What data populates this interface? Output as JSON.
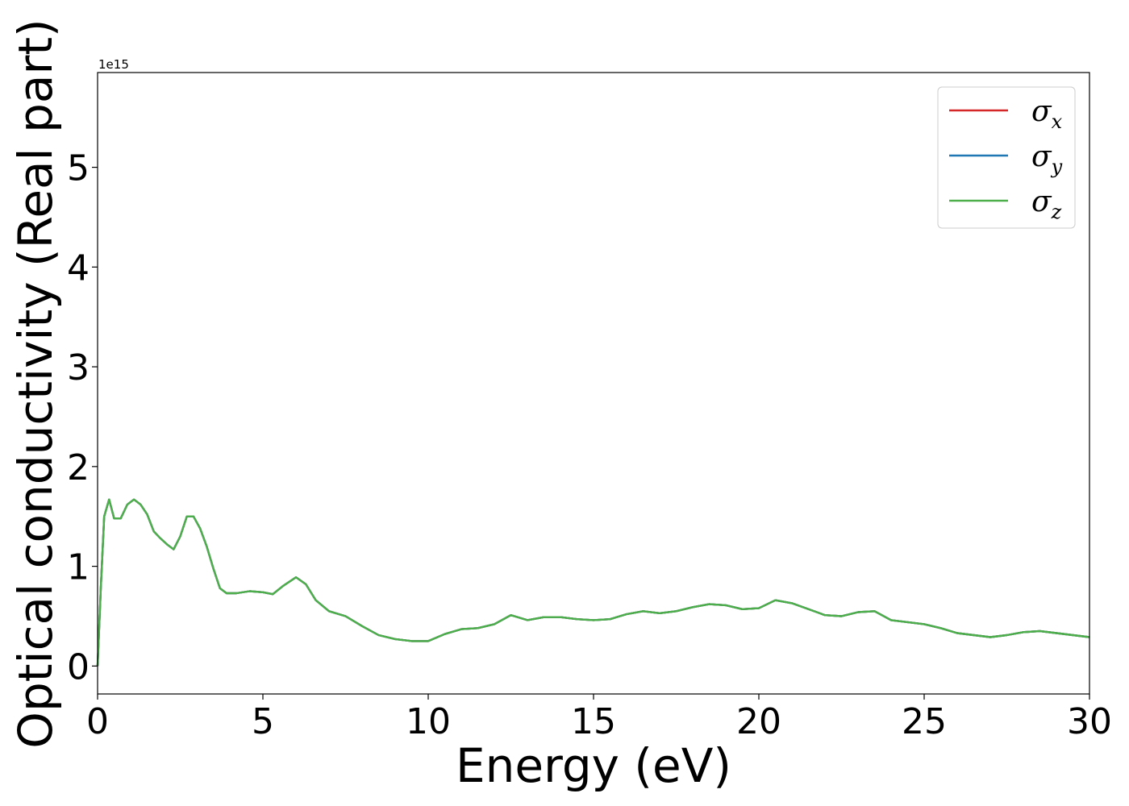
{
  "chart_data": {
    "type": "line",
    "xlabel": "Energy (eV)",
    "ylabel": "Optical conductivity (Real part)",
    "y_offset_label": "1e15",
    "xlim": [
      0,
      30
    ],
    "ylim": [
      -0.28,
      5.95
    ],
    "x_ticks": [
      0,
      5,
      10,
      15,
      20,
      25,
      30
    ],
    "x_tick_labels": [
      "0",
      "5",
      "10",
      "15",
      "20",
      "25",
      "30"
    ],
    "y_ticks": [
      0,
      1,
      2,
      3,
      4,
      5
    ],
    "y_tick_labels": [
      "0",
      "1",
      "2",
      "3",
      "4",
      "5"
    ],
    "grid": false,
    "legend_position": "top-right",
    "x": [
      0,
      0.1,
      0.2,
      0.35,
      0.5,
      0.7,
      0.9,
      1.1,
      1.3,
      1.5,
      1.7,
      1.9,
      2.1,
      2.3,
      2.5,
      2.7,
      2.9,
      3.1,
      3.3,
      3.5,
      3.7,
      3.9,
      4.2,
      4.6,
      5.0,
      5.3,
      5.6,
      6.0,
      6.3,
      6.6,
      7.0,
      7.5,
      8.0,
      8.5,
      9.0,
      9.5,
      10.0,
      10.5,
      11.0,
      11.5,
      12.0,
      12.5,
      13.0,
      13.5,
      14.0,
      14.5,
      15.0,
      15.5,
      16.0,
      16.5,
      17.0,
      17.5,
      18.0,
      18.5,
      19.0,
      19.5,
      20.0,
      20.5,
      21.0,
      21.5,
      22.0,
      22.5,
      23.0,
      23.5,
      24.0,
      24.5,
      25.0,
      25.5,
      26.0,
      26.5,
      27.0,
      27.5,
      28.0,
      28.5,
      29.0,
      29.5,
      30.0
    ],
    "series": [
      {
        "name": "σx",
        "legend_base": "σ",
        "legend_sub": "x",
        "color": "#d62728",
        "values": [
          0.0,
          0.8,
          1.5,
          1.67,
          1.48,
          1.48,
          1.62,
          1.67,
          1.62,
          1.52,
          1.35,
          1.28,
          1.22,
          1.17,
          1.3,
          1.5,
          1.5,
          1.38,
          1.2,
          0.98,
          0.78,
          0.73,
          0.73,
          0.75,
          0.74,
          0.72,
          0.8,
          0.89,
          0.82,
          0.66,
          0.55,
          0.5,
          0.4,
          0.31,
          0.27,
          0.25,
          0.25,
          0.32,
          0.37,
          0.38,
          0.42,
          0.51,
          0.46,
          0.49,
          0.49,
          0.47,
          0.46,
          0.47,
          0.52,
          0.55,
          0.53,
          0.55,
          0.59,
          0.62,
          0.61,
          0.57,
          0.58,
          0.66,
          0.63,
          0.57,
          0.51,
          0.5,
          0.54,
          0.55,
          0.46,
          0.44,
          0.42,
          0.38,
          0.33,
          0.31,
          0.29,
          0.31,
          0.34,
          0.35,
          0.33,
          0.31,
          0.29
        ]
      },
      {
        "name": "σy",
        "legend_base": "σ",
        "legend_sub": "y",
        "color": "#1f77b4",
        "values": [
          0.0,
          0.8,
          1.5,
          1.67,
          1.48,
          1.48,
          1.62,
          1.67,
          1.62,
          1.52,
          1.35,
          1.28,
          1.22,
          1.17,
          1.3,
          1.5,
          1.5,
          1.38,
          1.2,
          0.98,
          0.78,
          0.73,
          0.73,
          0.75,
          0.74,
          0.72,
          0.8,
          0.89,
          0.82,
          0.66,
          0.55,
          0.5,
          0.4,
          0.31,
          0.27,
          0.25,
          0.25,
          0.32,
          0.37,
          0.38,
          0.42,
          0.51,
          0.46,
          0.49,
          0.49,
          0.47,
          0.46,
          0.47,
          0.52,
          0.55,
          0.53,
          0.55,
          0.59,
          0.62,
          0.61,
          0.57,
          0.58,
          0.66,
          0.63,
          0.57,
          0.51,
          0.5,
          0.54,
          0.55,
          0.46,
          0.44,
          0.42,
          0.38,
          0.33,
          0.31,
          0.29,
          0.31,
          0.34,
          0.35,
          0.33,
          0.31,
          0.29
        ]
      },
      {
        "name": "σz",
        "legend_base": "σ",
        "legend_sub": "z",
        "color": "#4daf4a",
        "values": [
          0.0,
          0.8,
          1.5,
          1.67,
          1.48,
          1.48,
          1.62,
          1.67,
          1.62,
          1.52,
          1.35,
          1.28,
          1.22,
          1.17,
          1.3,
          1.5,
          1.5,
          1.38,
          1.2,
          0.98,
          0.78,
          0.73,
          0.73,
          0.75,
          0.74,
          0.72,
          0.8,
          0.89,
          0.82,
          0.66,
          0.55,
          0.5,
          0.4,
          0.31,
          0.27,
          0.25,
          0.25,
          0.32,
          0.37,
          0.38,
          0.42,
          0.51,
          0.46,
          0.49,
          0.49,
          0.47,
          0.46,
          0.47,
          0.52,
          0.55,
          0.53,
          0.55,
          0.59,
          0.62,
          0.61,
          0.57,
          0.58,
          0.66,
          0.63,
          0.57,
          0.51,
          0.5,
          0.54,
          0.55,
          0.46,
          0.44,
          0.42,
          0.38,
          0.33,
          0.31,
          0.29,
          0.31,
          0.34,
          0.35,
          0.33,
          0.31,
          0.29
        ]
      }
    ]
  }
}
